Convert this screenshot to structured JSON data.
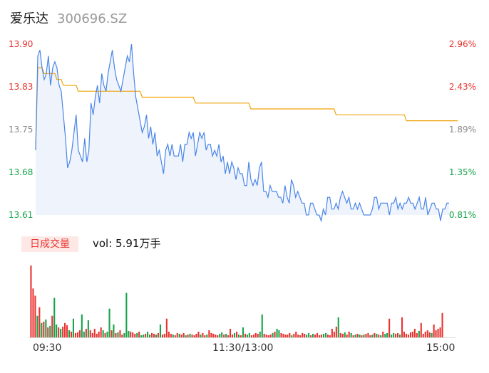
{
  "header": {
    "name": "爱乐达",
    "code": "300696.SZ"
  },
  "price_axis": {
    "ticks": [
      {
        "label": "13.90",
        "cls": "up"
      },
      {
        "label": "13.83",
        "cls": "up"
      },
      {
        "label": "13.75",
        "cls": "flat"
      },
      {
        "label": "13.68",
        "cls": "down"
      },
      {
        "label": "13.61",
        "cls": "down"
      }
    ]
  },
  "pct_axis": {
    "ticks": [
      {
        "label": "2.96%",
        "cls": "up"
      },
      {
        "label": "2.43%",
        "cls": "up"
      },
      {
        "label": "1.89%",
        "cls": "flat"
      },
      {
        "label": "1.35%",
        "cls": "down"
      },
      {
        "label": "0.81%",
        "cls": "down"
      }
    ]
  },
  "volume_panel": {
    "tab_label": "日成交量",
    "vol_text": "vol: 5.91万手"
  },
  "time_axis": {
    "labels": [
      "09:30",
      "11:30/13:00",
      "15:00"
    ]
  },
  "colors": {
    "price_line": "#4a86e8",
    "avg_line": "#f0a30a",
    "up": "#e8332f",
    "down": "#17a34a",
    "area": "#eef3fc"
  },
  "chart_data": [
    {
      "type": "line",
      "series": [
        {
          "name": "",
          "values": [
            13.72,
            13.88,
            13.89,
            13.86,
            13.84,
            13.85,
            13.88,
            13.83,
            13.86,
            13.87,
            13.86,
            13.83,
            13.82,
            13.78,
            13.74,
            13.69,
            13.7,
            13.72,
            13.75,
            13.78,
            13.72,
            13.71,
            13.7,
            13.74,
            13.7,
            13.72,
            13.8,
            13.78,
            13.81,
            13.83,
            13.8,
            13.85,
            13.83,
            13.82,
            13.85,
            13.87,
            13.89,
            13.86,
            13.84,
            13.83,
            13.82,
            13.84,
            13.86,
            13.88,
            13.87,
            13.9,
            13.85,
            13.81,
            13.79,
            13.77,
            13.75,
            13.76,
            13.78,
            13.74,
            13.76,
            13.73,
            13.75,
            13.71,
            13.72,
            13.7,
            13.68,
            13.72,
            13.73,
            13.71,
            13.73,
            13.71,
            13.71,
            13.71,
            13.73,
            13.7,
            13.73,
            13.73,
            13.75,
            13.74,
            13.75,
            13.71,
            13.73,
            13.75,
            13.74,
            13.75,
            13.72,
            13.73,
            13.73,
            13.71,
            13.72,
            13.71,
            13.73,
            13.7,
            13.71,
            13.68,
            13.7,
            13.68,
            13.7,
            13.69,
            13.67,
            13.69,
            13.68,
            13.68,
            13.66,
            13.66,
            13.7,
            13.67,
            13.66,
            13.67,
            13.66,
            13.69,
            13.7,
            13.65,
            13.65,
            13.64,
            13.66,
            13.65,
            13.65,
            13.65,
            13.64,
            13.64,
            13.63,
            13.66,
            13.64,
            13.63,
            13.67,
            13.66,
            13.64,
            13.65,
            13.64,
            13.63,
            13.63,
            13.61,
            13.61,
            13.63,
            13.63,
            13.62,
            13.61,
            13.61,
            13.6,
            13.62,
            13.61,
            13.64,
            13.64,
            13.62,
            13.62,
            13.63,
            13.62,
            13.64,
            13.65,
            13.64,
            13.63,
            13.64,
            13.62,
            13.62,
            13.63,
            13.62,
            13.63,
            13.62,
            13.61,
            13.61,
            13.61,
            13.61,
            13.62,
            13.64,
            13.64,
            13.62,
            13.63,
            13.63,
            13.63,
            13.63,
            13.61,
            13.63,
            13.63,
            13.64,
            13.62,
            13.63,
            13.62,
            13.63,
            13.63,
            13.64,
            13.63,
            13.63,
            13.62,
            13.63,
            13.64,
            13.62,
            13.62,
            13.64,
            13.61,
            13.62,
            13.63,
            13.63,
            13.62,
            13.62,
            13.6,
            13.62,
            13.62,
            13.63,
            13.63
          ]
        },
        {
          "name": "",
          "values": [
            13.72,
            13.86,
            13.86,
            13.86,
            13.85,
            13.85,
            13.85,
            13.85,
            13.85,
            13.85,
            13.84,
            13.84,
            13.84,
            13.83,
            13.83,
            13.83,
            13.83,
            13.83,
            13.83,
            13.83,
            13.82,
            13.82,
            13.82,
            13.82,
            13.82,
            13.82,
            13.82,
            13.82,
            13.82,
            13.82,
            13.82,
            13.82,
            13.82,
            13.82,
            13.82,
            13.82,
            13.82,
            13.82,
            13.82,
            13.82,
            13.82,
            13.82,
            13.82,
            13.82,
            13.82,
            13.82,
            13.82,
            13.82,
            13.82,
            13.82,
            13.81,
            13.81,
            13.81,
            13.81,
            13.81,
            13.81,
            13.81,
            13.81,
            13.81,
            13.81,
            13.81,
            13.81,
            13.81,
            13.81,
            13.81,
            13.81,
            13.81,
            13.81,
            13.81,
            13.81,
            13.81,
            13.81,
            13.81,
            13.81,
            13.81,
            13.8,
            13.8,
            13.8,
            13.8,
            13.8,
            13.8,
            13.8,
            13.8,
            13.8,
            13.8,
            13.8,
            13.8,
            13.8,
            13.8,
            13.8,
            13.8,
            13.8,
            13.8,
            13.8,
            13.8,
            13.8,
            13.8,
            13.8,
            13.8,
            13.8,
            13.8,
            13.79,
            13.79,
            13.79,
            13.79,
            13.79,
            13.79,
            13.79,
            13.79,
            13.79,
            13.79,
            13.79,
            13.79,
            13.79,
            13.79,
            13.79,
            13.79,
            13.79,
            13.79,
            13.79,
            13.79,
            13.79,
            13.79,
            13.79,
            13.79,
            13.79,
            13.79,
            13.79,
            13.79,
            13.79,
            13.79,
            13.79,
            13.79,
            13.79,
            13.79,
            13.79,
            13.79,
            13.79,
            13.79,
            13.79,
            13.79,
            13.78,
            13.78,
            13.78,
            13.78,
            13.78,
            13.78,
            13.78,
            13.78,
            13.78,
            13.78,
            13.78,
            13.78,
            13.78,
            13.78,
            13.78,
            13.78,
            13.78,
            13.78,
            13.78,
            13.78,
            13.78,
            13.78,
            13.78,
            13.78,
            13.78,
            13.78,
            13.78,
            13.78,
            13.78,
            13.78,
            13.78,
            13.78,
            13.78,
            13.77,
            13.77,
            13.77,
            13.77,
            13.77,
            13.77,
            13.77,
            13.77,
            13.77,
            13.77,
            13.77,
            13.77,
            13.77,
            13.77,
            13.77,
            13.77,
            13.77,
            13.77,
            13.77,
            13.77,
            13.77,
            13.77,
            13.77,
            13.77,
            13.77
          ]
        }
      ],
      "ylim": [
        13.61,
        13.9
      ],
      "xlabel": "",
      "ylabel": ""
    },
    {
      "type": "bar",
      "series": [
        {
          "name": "",
          "values": [
            100,
            68,
            58,
            30,
            42,
            20,
            22,
            25,
            14,
            16,
            30,
            55,
            18,
            14,
            12,
            15,
            20,
            17,
            10,
            8,
            26,
            6,
            7,
            10,
            32,
            8,
            12,
            24,
            10,
            6,
            12,
            5,
            8,
            14,
            10,
            6,
            8,
            40,
            10,
            18,
            6,
            7,
            10,
            4,
            6,
            62,
            9,
            8,
            7,
            5,
            6,
            8,
            3,
            4,
            5,
            8,
            4,
            6,
            5,
            4,
            6,
            18,
            4,
            5,
            26,
            8,
            5,
            4,
            3,
            6,
            5,
            4,
            6,
            3,
            4,
            5,
            4,
            3,
            5,
            8,
            4,
            6,
            3,
            4,
            10,
            6,
            5,
            4,
            3,
            5,
            7,
            4,
            5,
            3,
            12,
            4,
            6,
            8,
            4,
            3,
            14,
            5,
            4,
            6,
            3,
            4,
            6,
            5,
            8,
            32,
            5,
            4,
            3,
            4,
            6,
            8,
            12,
            10,
            6,
            5,
            4,
            4,
            6,
            3,
            5,
            8,
            4,
            3,
            6,
            5,
            4,
            6,
            3,
            5,
            4,
            6,
            3,
            4,
            5,
            6,
            4,
            3,
            12,
            8,
            15,
            28,
            6,
            5,
            7,
            4,
            8,
            6,
            3,
            4,
            5,
            4,
            3,
            4,
            5,
            6,
            3,
            4,
            6,
            5,
            4,
            3,
            8,
            5,
            6,
            26,
            4,
            6,
            5,
            6,
            4,
            28,
            8,
            5,
            4,
            7,
            8,
            12,
            6,
            9,
            20,
            5,
            8,
            10,
            7,
            6,
            18,
            10,
            12,
            14,
            34
          ],
          "colors": [
            "up",
            "up",
            "up",
            "down",
            "up",
            "down",
            "up",
            "down",
            "up",
            "down",
            "up",
            "down",
            "down",
            "up",
            "down",
            "up",
            "up",
            "up",
            "down",
            "up",
            "down",
            "up",
            "up",
            "up",
            "down",
            "down",
            "up",
            "down",
            "up",
            "up",
            "up",
            "up",
            "up",
            "up",
            "down",
            "up",
            "down",
            "down",
            "up",
            "down",
            "up",
            "down",
            "up",
            "up",
            "down",
            "down",
            "down",
            "up",
            "up",
            "up",
            "down",
            "up",
            "down",
            "down",
            "up",
            "down",
            "down",
            "up",
            "up",
            "down",
            "up",
            "down",
            "up",
            "up",
            "up",
            "up",
            "up",
            "down",
            "up",
            "up",
            "down",
            "up",
            "up",
            "down",
            "up",
            "down",
            "up",
            "up",
            "up",
            "up",
            "down",
            "up",
            "up",
            "down",
            "up",
            "up",
            "up",
            "up",
            "up",
            "down",
            "down",
            "up",
            "down",
            "up",
            "up",
            "up",
            "down",
            "up",
            "down",
            "up",
            "down",
            "up",
            "down",
            "down",
            "up",
            "up",
            "up",
            "up",
            "down",
            "down",
            "up",
            "up",
            "up",
            "up",
            "down",
            "up",
            "down",
            "down",
            "up",
            "up",
            "up",
            "up",
            "up",
            "down",
            "up",
            "up",
            "up",
            "up",
            "up",
            "up",
            "down",
            "down",
            "up",
            "down",
            "up",
            "up",
            "up",
            "up",
            "down",
            "down",
            "up",
            "up",
            "up",
            "up",
            "up",
            "down",
            "up",
            "up",
            "down",
            "up",
            "up",
            "down",
            "up",
            "down",
            "up",
            "down",
            "up",
            "down",
            "up",
            "up",
            "up",
            "down",
            "up",
            "down",
            "up",
            "down",
            "up",
            "down",
            "down",
            "up",
            "down",
            "down",
            "up",
            "up",
            "down",
            "up",
            "up",
            "up",
            "up",
            "up",
            "up",
            "up",
            "up",
            "down",
            "up",
            "up",
            "up",
            "up",
            "up",
            "down",
            "up",
            "up",
            "up",
            "up",
            "up"
          ]
        }
      ],
      "xlabel": "",
      "ylabel": ""
    }
  ]
}
